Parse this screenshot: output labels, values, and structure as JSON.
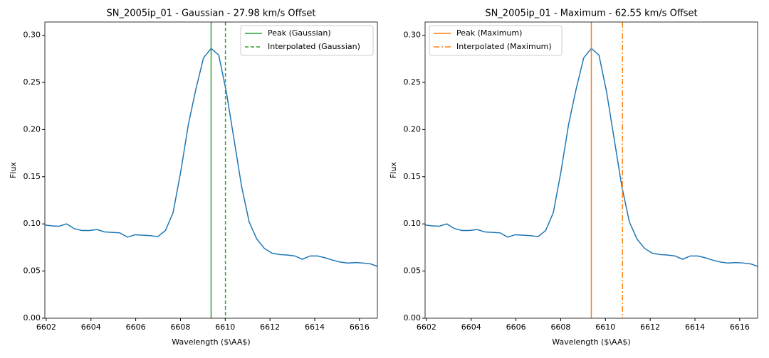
{
  "chart_data": [
    {
      "type": "line",
      "title": "SN_2005ip_01 - Gaussian - 27.98 km/s Offset",
      "x_label": "Wavelength ($\\AA$)",
      "y_label": "Flux",
      "x": [
        6601.89,
        6602.23,
        6602.57,
        6602.91,
        6603.25,
        6603.59,
        6603.93,
        6604.27,
        6604.61,
        6604.95,
        6605.29,
        6605.63,
        6605.97,
        6606.31,
        6606.65,
        6606.99,
        6607.33,
        6607.67,
        6608.01,
        6608.35,
        6608.69,
        6609.03,
        6609.37,
        6609.71,
        6610.05,
        6610.39,
        6610.73,
        6611.07,
        6611.41,
        6611.75,
        6612.09,
        6612.43,
        6612.77,
        6613.11,
        6613.45,
        6613.79,
        6614.13,
        6614.47,
        6614.81,
        6615.15,
        6615.49,
        6615.83,
        6616.17,
        6616.51,
        6616.85,
        6617.19
      ],
      "values": [
        0.099,
        0.098,
        0.0975,
        0.1,
        0.095,
        0.093,
        0.093,
        0.094,
        0.0915,
        0.091,
        0.0905,
        0.086,
        0.0885,
        0.088,
        0.0875,
        0.0865,
        0.093,
        0.112,
        0.155,
        0.205,
        0.243,
        0.276,
        0.286,
        0.279,
        0.24,
        0.19,
        0.14,
        0.102,
        0.084,
        0.074,
        0.069,
        0.0675,
        0.067,
        0.066,
        0.0625,
        0.066,
        0.066,
        0.064,
        0.0615,
        0.0595,
        0.0585,
        0.059,
        0.0585,
        0.0575,
        0.0545,
        0.052
      ],
      "color": "#1f77b4",
      "vlines": [
        {
          "name": "Peak (Gaussian)",
          "x": 6609.37,
          "color": "#2ca02c",
          "style": "solid"
        },
        {
          "name": "Interpolated (Gaussian)",
          "x": 6610.01,
          "color": "#2ca02c",
          "style": "dashed"
        }
      ],
      "legend": "upper right",
      "xlim": [
        6601.94,
        6616.8
      ],
      "xticks": [
        6602,
        6604,
        6606,
        6608,
        6610,
        6612,
        6614,
        6616
      ],
      "ylim": [
        0,
        0.314
      ],
      "yticks": [
        {
          "value": 0,
          "label": "0.00"
        },
        {
          "value": 0.05,
          "label": "0.05"
        },
        {
          "value": 0.1,
          "label": "0.10"
        },
        {
          "value": 0.15,
          "label": "0.15"
        },
        {
          "value": 0.2,
          "label": "0.20"
        },
        {
          "value": 0.25,
          "label": "0.25"
        },
        {
          "value": 0.3,
          "label": "0.30"
        }
      ]
    },
    {
      "type": "line",
      "title": "SN_2005ip_01 - Maximum - 62.55 km/s Offset",
      "x_label": "Wavelength ($\\AA$)",
      "y_label": "Flux",
      "x": [
        6601.89,
        6602.23,
        6602.57,
        6602.91,
        6603.25,
        6603.59,
        6603.93,
        6604.27,
        6604.61,
        6604.95,
        6605.29,
        6605.63,
        6605.97,
        6606.31,
        6606.65,
        6606.99,
        6607.33,
        6607.67,
        6608.01,
        6608.35,
        6608.69,
        6609.03,
        6609.37,
        6609.71,
        6610.05,
        6610.39,
        6610.73,
        6611.07,
        6611.41,
        6611.75,
        6612.09,
        6612.43,
        6612.77,
        6613.11,
        6613.45,
        6613.79,
        6614.13,
        6614.47,
        6614.81,
        6615.15,
        6615.49,
        6615.83,
        6616.17,
        6616.51,
        6616.85,
        6617.19
      ],
      "values": [
        0.099,
        0.098,
        0.0975,
        0.1,
        0.095,
        0.093,
        0.093,
        0.094,
        0.0915,
        0.091,
        0.0905,
        0.086,
        0.0885,
        0.088,
        0.0875,
        0.0865,
        0.093,
        0.112,
        0.155,
        0.205,
        0.243,
        0.276,
        0.286,
        0.279,
        0.24,
        0.19,
        0.14,
        0.102,
        0.084,
        0.074,
        0.069,
        0.0675,
        0.067,
        0.066,
        0.0625,
        0.066,
        0.066,
        0.064,
        0.0615,
        0.0595,
        0.0585,
        0.059,
        0.0585,
        0.0575,
        0.0545,
        0.052
      ],
      "color": "#1f77b4",
      "vlines": [
        {
          "name": "Peak (Maximum)",
          "x": 6609.37,
          "color": "#ff7f0e",
          "style": "solid"
        },
        {
          "name": "Interpolated (Maximum)",
          "x": 6610.76,
          "color": "#ff7f0e",
          "style": "dashdot"
        }
      ],
      "legend": "upper left",
      "xlim": [
        6601.94,
        6616.8
      ],
      "xticks": [
        6602,
        6604,
        6606,
        6608,
        6610,
        6612,
        6614,
        6616
      ],
      "ylim": [
        0,
        0.314
      ],
      "yticks": [
        {
          "value": 0,
          "label": "0.00"
        },
        {
          "value": 0.05,
          "label": "0.05"
        },
        {
          "value": 0.1,
          "label": "0.10"
        },
        {
          "value": 0.15,
          "label": "0.15"
        },
        {
          "value": 0.2,
          "label": "0.20"
        },
        {
          "value": 0.25,
          "label": "0.25"
        },
        {
          "value": 0.3,
          "label": "0.30"
        }
      ]
    }
  ]
}
